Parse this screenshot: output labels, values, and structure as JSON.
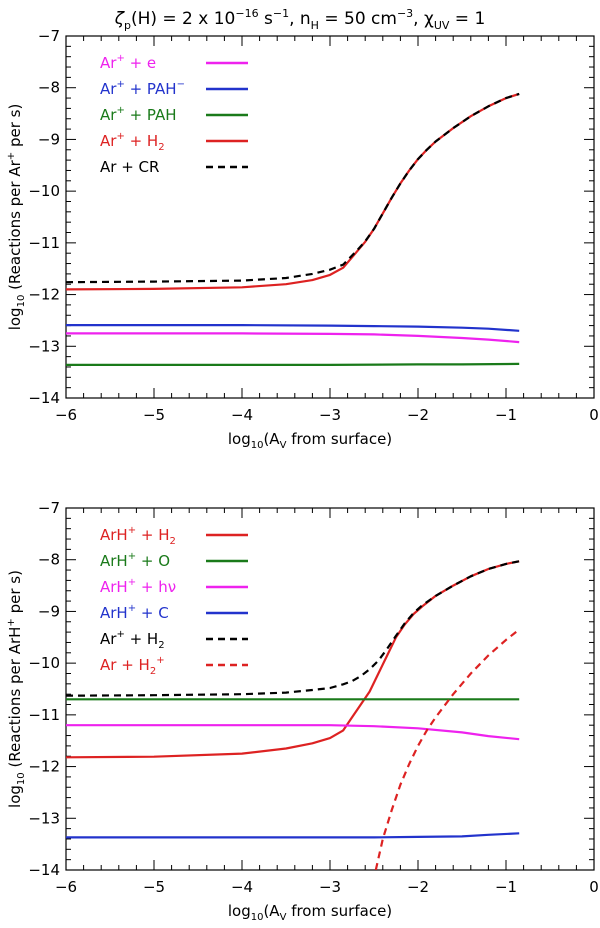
{
  "figure_title": {
    "zeta": "ζ",
    "zeta_sub": "p",
    "p1": "(H) = 2 x 10",
    "p1_sup": "−16",
    "p2": " s",
    "p2_sup": "−1",
    "p3": ", n",
    "p3_sub": "H",
    "p4": " = 50 cm",
    "p4_sup": "−3",
    "p5": ", χ",
    "p5_sub": "UV",
    "p6": " = 1"
  },
  "chart_data": [
    {
      "type": "line",
      "xlabel": {
        "main": "log",
        "sub": "10",
        "rest": "(A",
        "rest_sub": "V",
        "tail": " from surface)"
      },
      "ylabel": {
        "main": "log",
        "sub": "10",
        "rest": " (Reactions per Ar",
        "rest_sup": "+",
        "tail": " per s)"
      },
      "xlim": [
        -6,
        0
      ],
      "ylim": [
        -14,
        -7
      ],
      "xticks": [
        "−6",
        "−5",
        "−4",
        "−3",
        "−2",
        "−1",
        "0"
      ],
      "yticks": [
        "−7",
        "−8",
        "−9",
        "−10",
        "−11",
        "−12",
        "−13",
        "−14"
      ],
      "legend_position": "top-left",
      "series": [
        {
          "name": "Ar+ + e",
          "color": "#ee22ee",
          "dash": false,
          "label": {
            "a": "Ar",
            "a_sup": "+",
            "b": " + e"
          },
          "x": [
            -6,
            -5,
            -4,
            -3,
            -2.5,
            -2,
            -1.5,
            -1.2,
            -0.85
          ],
          "y": [
            -12.75,
            -12.75,
            -12.75,
            -12.76,
            -12.77,
            -12.8,
            -12.84,
            -12.87,
            -12.92
          ]
        },
        {
          "name": "Ar+ + PAH-",
          "color": "#2233cc",
          "dash": false,
          "label": {
            "a": "Ar",
            "a_sup": "+",
            "b": " + PAH",
            "b_sup": "−"
          },
          "x": [
            -6,
            -5,
            -4,
            -3,
            -2.5,
            -2,
            -1.5,
            -1.2,
            -0.85
          ],
          "y": [
            -12.59,
            -12.59,
            -12.59,
            -12.6,
            -12.61,
            -12.62,
            -12.64,
            -12.66,
            -12.7
          ]
        },
        {
          "name": "Ar+ + PAH",
          "color": "#1a7a1a",
          "dash": false,
          "label": {
            "a": "Ar",
            "a_sup": "+",
            "b": " + PAH"
          },
          "x": [
            -6,
            -5,
            -4,
            -3,
            -2,
            -1.5,
            -0.85
          ],
          "y": [
            -13.36,
            -13.36,
            -13.36,
            -13.36,
            -13.35,
            -13.35,
            -13.34
          ]
        },
        {
          "name": "Ar+ + H2",
          "color": "#dd2222",
          "dash": false,
          "label": {
            "a": "Ar",
            "a_sup": "+",
            "b": " + H",
            "b_sub": "2"
          },
          "x": [
            -6,
            -5,
            -4,
            -3.5,
            -3.2,
            -3,
            -2.85,
            -2.7,
            -2.6,
            -2.5,
            -2.4,
            -2.3,
            -2.2,
            -2.1,
            -2,
            -1.9,
            -1.8,
            -1.6,
            -1.4,
            -1.2,
            -1,
            -0.85
          ],
          "y": [
            -11.9,
            -11.89,
            -11.86,
            -11.8,
            -11.72,
            -11.62,
            -11.48,
            -11.18,
            -10.98,
            -10.73,
            -10.43,
            -10.13,
            -9.85,
            -9.6,
            -9.38,
            -9.2,
            -9.04,
            -8.78,
            -8.55,
            -8.36,
            -8.2,
            -8.12
          ]
        },
        {
          "name": "Ar + CR",
          "color": "#000000",
          "dash": true,
          "label": {
            "a": "Ar + CR"
          },
          "x": [
            -6,
            -5,
            -4,
            -3.5,
            -3.2,
            -3,
            -2.85,
            -2.7,
            -2.6,
            -2.5,
            -2.4,
            -2.3,
            -2.2,
            -2.1,
            -2,
            -1.9,
            -1.8,
            -1.6,
            -1.4,
            -1.2,
            -1,
            -0.85
          ],
          "y": [
            -11.76,
            -11.75,
            -11.73,
            -11.68,
            -11.6,
            -11.52,
            -11.42,
            -11.16,
            -10.97,
            -10.73,
            -10.43,
            -10.13,
            -9.85,
            -9.6,
            -9.38,
            -9.2,
            -9.04,
            -8.78,
            -8.55,
            -8.36,
            -8.2,
            -8.12
          ]
        }
      ]
    },
    {
      "type": "line",
      "xlabel": {
        "main": "log",
        "sub": "10",
        "rest": "(A",
        "rest_sub": "V",
        "tail": " from surface)"
      },
      "ylabel": {
        "main": "log",
        "sub": "10",
        "rest": " (Reactions per ArH",
        "rest_sup": "+",
        "tail": " per s)"
      },
      "xlim": [
        -6,
        0
      ],
      "ylim": [
        -14,
        -7
      ],
      "xticks": [
        "−6",
        "−5",
        "−4",
        "−3",
        "−2",
        "−1",
        "0"
      ],
      "yticks": [
        "−7",
        "−8",
        "−9",
        "−10",
        "−11",
        "−12",
        "−13",
        "−14"
      ],
      "legend_position": "top-left",
      "series": [
        {
          "name": "ArH+ + H2",
          "color": "#dd2222",
          "dash": false,
          "label": {
            "a": "ArH",
            "a_sup": "+",
            "b": " + H",
            "b_sub": "2"
          },
          "x": [
            -6,
            -5,
            -4,
            -3.5,
            -3.2,
            -3,
            -2.85,
            -2.75,
            -2.65,
            -2.55,
            -2.45,
            -2.35,
            -2.25,
            -2.15,
            -2.05,
            -1.95,
            -1.8,
            -1.6,
            -1.4,
            -1.2,
            -1,
            -0.85
          ],
          "y": [
            -11.82,
            -11.81,
            -11.75,
            -11.65,
            -11.55,
            -11.45,
            -11.3,
            -11.05,
            -10.8,
            -10.55,
            -10.2,
            -9.85,
            -9.5,
            -9.25,
            -9.05,
            -8.9,
            -8.7,
            -8.5,
            -8.32,
            -8.18,
            -8.08,
            -8.03
          ]
        },
        {
          "name": "ArH+ + O",
          "color": "#1a7a1a",
          "dash": false,
          "label": {
            "a": "ArH",
            "a_sup": "+",
            "b": " + O"
          },
          "x": [
            -6,
            -5,
            -4,
            -3,
            -2,
            -1.5,
            -0.85
          ],
          "y": [
            -10.7,
            -10.7,
            -10.7,
            -10.7,
            -10.7,
            -10.7,
            -10.7
          ]
        },
        {
          "name": "ArH+ + hν",
          "color": "#ee22ee",
          "dash": false,
          "label": {
            "a": "ArH",
            "a_sup": "+",
            "b": " + hν"
          },
          "x": [
            -6,
            -5,
            -4,
            -3,
            -2.5,
            -2,
            -1.5,
            -1.2,
            -0.85
          ],
          "y": [
            -11.2,
            -11.2,
            -11.2,
            -11.2,
            -11.22,
            -11.26,
            -11.34,
            -11.41,
            -11.47
          ]
        },
        {
          "name": "ArH+ + C",
          "color": "#2233cc",
          "dash": false,
          "label": {
            "a": "ArH",
            "a_sup": "+",
            "b": " + C"
          },
          "x": [
            -6,
            -5,
            -4,
            -3,
            -2.5,
            -2,
            -1.5,
            -1.2,
            -0.85
          ],
          "y": [
            -13.37,
            -13.37,
            -13.37,
            -13.37,
            -13.37,
            -13.36,
            -13.35,
            -13.32,
            -13.29
          ]
        },
        {
          "name": "Ar+ + H2",
          "color": "#000000",
          "dash": true,
          "label": {
            "a": "Ar",
            "a_sup": "+",
            "b": " + H",
            "b_sub": "2"
          },
          "x": [
            -6,
            -5,
            -4,
            -3.5,
            -3.2,
            -3,
            -2.85,
            -2.75,
            -2.65,
            -2.55,
            -2.45,
            -2.35,
            -2.25,
            -2.15,
            -2.05,
            -1.95,
            -1.8,
            -1.6,
            -1.4,
            -1.2,
            -1,
            -0.85
          ],
          "y": [
            -10.63,
            -10.62,
            -10.6,
            -10.57,
            -10.52,
            -10.48,
            -10.41,
            -10.35,
            -10.25,
            -10.12,
            -9.95,
            -9.72,
            -9.47,
            -9.23,
            -9.03,
            -8.88,
            -8.7,
            -8.5,
            -8.32,
            -8.18,
            -8.08,
            -8.03
          ]
        },
        {
          "name": "Ar + H2+",
          "color": "#dd2222",
          "dash": true,
          "label": {
            "a": "Ar + H",
            "a_sub": "2",
            "a_sup": "+"
          },
          "x": [
            -2.48,
            -2.4,
            -2.3,
            -2.2,
            -2.1,
            -2,
            -1.9,
            -1.8,
            -1.6,
            -1.4,
            -1.2,
            -1,
            -0.85
          ],
          "y": [
            -14,
            -13.4,
            -12.85,
            -12.35,
            -11.95,
            -11.6,
            -11.3,
            -11.05,
            -10.6,
            -10.2,
            -9.85,
            -9.55,
            -9.35
          ]
        }
      ]
    }
  ]
}
